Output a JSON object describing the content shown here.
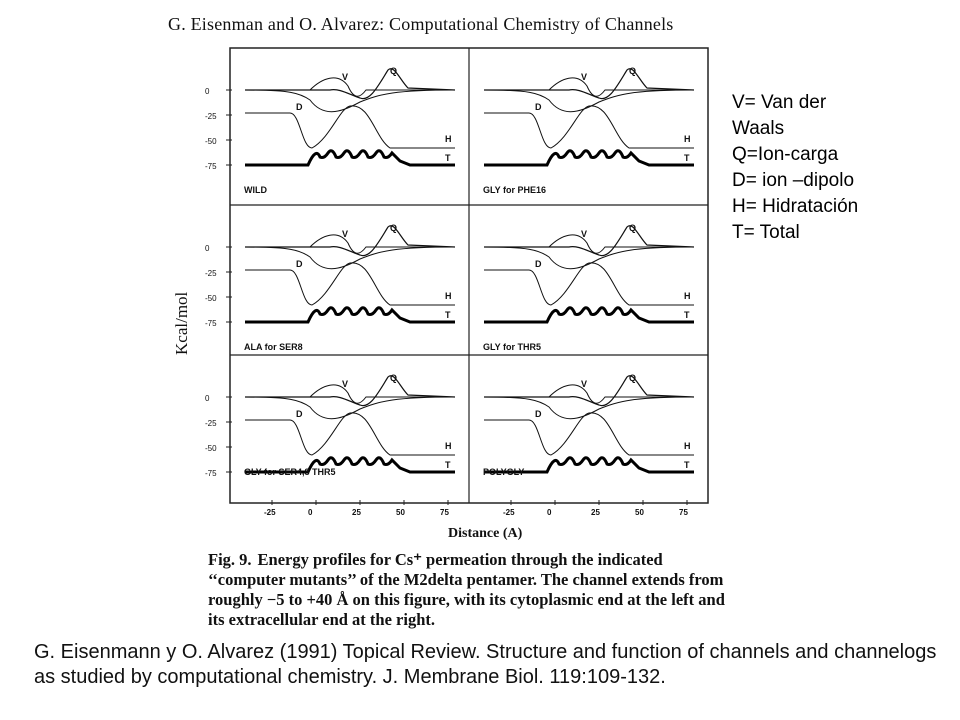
{
  "header": "G. Eisenman and O. Alvarez: Computational Chemistry of Channels",
  "y_axis_label": "Kcal/mol",
  "x_axis_label": "Distance (A)",
  "y_ticks": [
    "0",
    "-25",
    "-50",
    "-75"
  ],
  "x_ticks": [
    "-25",
    "0",
    "25",
    "50",
    "75"
  ],
  "curve_labels": {
    "v": "V",
    "q": "Q",
    "d": "D",
    "h": "H",
    "t": "T"
  },
  "panels": [
    {
      "label": "WILD"
    },
    {
      "label": "GLY for PHE16"
    },
    {
      "label": "ALA for SER8"
    },
    {
      "label": "GLY for THR5"
    },
    {
      "label": "GLY for SER4,8 THR5"
    },
    {
      "label": "POLYGLY"
    }
  ],
  "caption": {
    "fig_label": "Fig. 9.",
    "text": "Energy profiles for Cs⁺ permeation through the indicated ‘‘computer mutants’’ of the M2delta pentamer. The channel extends from roughly −5 to +40 Å on this figure, with its cytoplasmic end at the left and its extracellular end at the right."
  },
  "legend": [
    "V= Van der",
    "Waals",
    "Q=Ion-carga",
    "D= ion –dipolo",
    "H= Hidratación",
    "T= Total"
  ],
  "citation": "G. Eisenmann y O. Alvarez (1991) Topical Review. Structure and function of channels and channelogs as studied by computational chemistry. J. Membrane Biol. 119:109-132."
}
